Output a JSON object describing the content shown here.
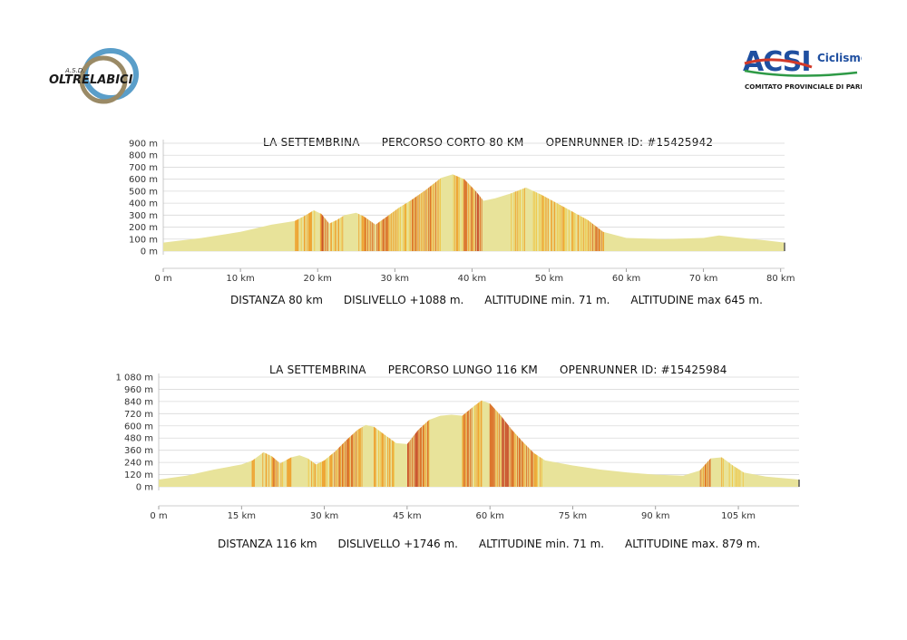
{
  "logos": {
    "left": {
      "small_text": "A.S.D.",
      "name": "OLTRELABICI"
    },
    "right": {
      "mark": "ACSI",
      "suffix": "Ciclismo",
      "subtitle": "COMITATO PROVINCIALE DI PARMA"
    }
  },
  "colors": {
    "area_fill": "#e8e39a",
    "stripe_light": "#f0c23a",
    "stripe_mid": "#ee9a22",
    "stripe_dark": "#d9621a",
    "stripe_red": "#c43a1a",
    "grid": "#d9d9d9"
  },
  "chart_data": [
    {
      "type": "area",
      "title": "LA SETTEMBRINA      PERCORSO CORTO 80 KM      OPENRUNNER ID: #15425942",
      "stats": "DISTANZA 80 km      DISLIVELLO +1088 m.      ALTITUDINE min. 71 m.      ALTITUDINE max 645 m.",
      "x_unit": "km",
      "y_unit": "m",
      "xlim": [
        0,
        80
      ],
      "ylim": [
        0,
        900
      ],
      "x_ticks": [
        0,
        10,
        20,
        30,
        40,
        50,
        60,
        70,
        80
      ],
      "x_tick_labels": [
        "0 m",
        "10 km",
        "20 km",
        "30 km",
        "40 km",
        "50 km",
        "60 km",
        "70 km",
        "80 km"
      ],
      "y_ticks": [
        0,
        100,
        200,
        300,
        400,
        500,
        600,
        700,
        800,
        900
      ],
      "y_tick_labels": [
        "0 m",
        "100 m",
        "200 m",
        "300 m",
        "400 m",
        "500 m",
        "600 m",
        "700 m",
        "800 m",
        "900 m"
      ],
      "grid": true,
      "x": [
        0,
        5,
        10,
        14,
        17,
        18.5,
        19.5,
        20.5,
        21.5,
        22.5,
        23.5,
        25,
        26,
        27.5,
        29,
        30.5,
        32,
        34,
        36,
        37.5,
        39,
        40.5,
        41.5,
        43,
        45,
        47,
        49,
        51,
        53,
        55,
        57,
        60,
        65,
        70,
        72,
        75,
        78,
        80.5
      ],
      "y": [
        71,
        110,
        160,
        220,
        250,
        300,
        340,
        310,
        230,
        260,
        300,
        320,
        290,
        220,
        290,
        360,
        420,
        510,
        610,
        640,
        600,
        500,
        420,
        440,
        480,
        530,
        470,
        400,
        330,
        260,
        160,
        110,
        100,
        110,
        130,
        110,
        90,
        71
      ]
    },
    {
      "type": "area",
      "title": "LA SETTEMBRINA      PERCORSO LUNGO 116 KM      OPENRUNNER ID: #15425984",
      "stats": "DISTANZA 116 km      DISLIVELLO +1746 m.      ALTITUDINE min. 71 m.      ALTITUDINE max. 879 m.",
      "x_unit": "km",
      "y_unit": "m",
      "xlim": [
        0,
        116
      ],
      "ylim": [
        0,
        1080
      ],
      "x_ticks": [
        0,
        15,
        30,
        45,
        60,
        75,
        90,
        105
      ],
      "x_tick_labels": [
        "0 m",
        "15 km",
        "30 km",
        "45 km",
        "60 km",
        "75 km",
        "90 km",
        "105 km"
      ],
      "y_ticks": [
        0,
        120,
        240,
        360,
        480,
        600,
        720,
        840,
        960,
        1080
      ],
      "y_tick_labels": [
        "0 m",
        "120 m",
        "240 m",
        "360 m",
        "480 m",
        "600 m",
        "720 m",
        "840 m",
        "960 m",
        "1 080 m"
      ],
      "grid": true,
      "x": [
        0,
        5,
        10,
        15,
        17,
        19,
        20.5,
        22,
        24,
        25.5,
        27,
        28.5,
        30,
        32,
        34,
        36,
        37.5,
        39,
        41,
        43,
        45,
        47,
        49,
        51,
        53,
        55,
        57,
        58.5,
        60,
        62,
        64,
        66,
        68,
        70,
        75,
        80,
        85,
        90,
        95,
        98,
        100,
        102,
        104,
        106,
        110,
        116
      ],
      "y": [
        71,
        110,
        170,
        220,
        260,
        340,
        300,
        230,
        290,
        310,
        280,
        220,
        260,
        350,
        460,
        560,
        610,
        590,
        510,
        430,
        420,
        560,
        660,
        700,
        710,
        700,
        790,
        850,
        820,
        700,
        560,
        440,
        330,
        260,
        210,
        170,
        140,
        120,
        110,
        160,
        280,
        290,
        210,
        140,
        100,
        71
      ]
    }
  ]
}
